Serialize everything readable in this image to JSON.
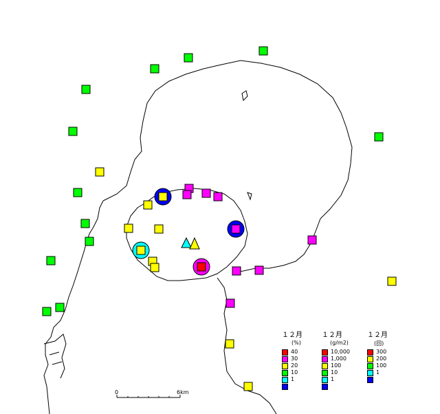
{
  "scale": {
    "zero_label": "0",
    "end_label": "6km"
  },
  "legends": [
    {
      "title": "１２月",
      "unit": "(%)",
      "items": [
        {
          "label": "40",
          "color": "#ff0000"
        },
        {
          "label": "30",
          "color": "#ff00ff"
        },
        {
          "label": "20",
          "color": "#ffff00"
        },
        {
          "label": "10",
          "color": "#00ff00"
        },
        {
          "label": "1",
          "color": "#00ffff"
        },
        {
          "label": "",
          "color": "#0000ff"
        }
      ]
    },
    {
      "title": "１２月",
      "unit": "(g/m2)",
      "items": [
        {
          "label": "10,000",
          "color": "#ff0000"
        },
        {
          "label": "1,000",
          "color": "#ff00ff"
        },
        {
          "label": "100",
          "color": "#ffff00"
        },
        {
          "label": "10",
          "color": "#00ff00"
        },
        {
          "label": "1",
          "color": "#00ffff"
        },
        {
          "label": "",
          "color": "#0000ff"
        }
      ]
    },
    {
      "title": "１２月",
      "unit": "(回)",
      "items": [
        {
          "label": "300",
          "color": "#ff0000"
        },
        {
          "label": "200",
          "color": "#ffff00"
        },
        {
          "label": "100",
          "color": "#00ff00"
        },
        {
          "label": "1",
          "color": "#00ffff"
        },
        {
          "label": "",
          "color": "#0000ff"
        }
      ]
    }
  ],
  "colors": {
    "green": "#00ff00",
    "yellow": "#ffff00",
    "magenta": "#ff00ff",
    "red": "#ff0000",
    "cyan": "#00ffff",
    "blue": "#0000ff"
  }
}
